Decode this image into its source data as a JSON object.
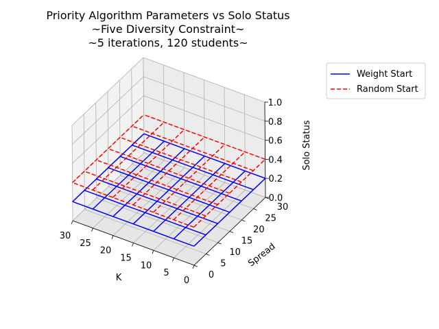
{
  "chart_data": {
    "type": "wireframe3d",
    "title": [
      "Priority Algorithm Parameters vs Solo Status",
      "~Five Diversity Constraint~",
      "~5 iterations, 120 students~"
    ],
    "xlabel": "K",
    "ylabel": "Spread",
    "zlabel": "Solo Status",
    "xlim": [
      0,
      30
    ],
    "ylim": [
      0,
      30
    ],
    "zlim": [
      0,
      1
    ],
    "xticks": [
      0,
      5,
      10,
      15,
      20,
      25,
      30
    ],
    "yticks": [
      0,
      5,
      10,
      15,
      20,
      25,
      30
    ],
    "zticks": [
      0.0,
      0.2,
      0.4,
      0.6,
      0.8,
      1.0
    ],
    "grid": true,
    "legend_position": "outside top-right",
    "x": [
      0,
      5,
      10,
      15,
      20,
      25,
      30
    ],
    "y": [
      0,
      5,
      10,
      15,
      20,
      25,
      30
    ],
    "series": [
      {
        "name": "Weight Start",
        "color": "#0000ff",
        "linestyle": "solid",
        "z_value": 0.2
      },
      {
        "name": "Random Start",
        "color": "#ff0000",
        "linestyle": "dashed",
        "z_value": 0.4
      }
    ]
  }
}
